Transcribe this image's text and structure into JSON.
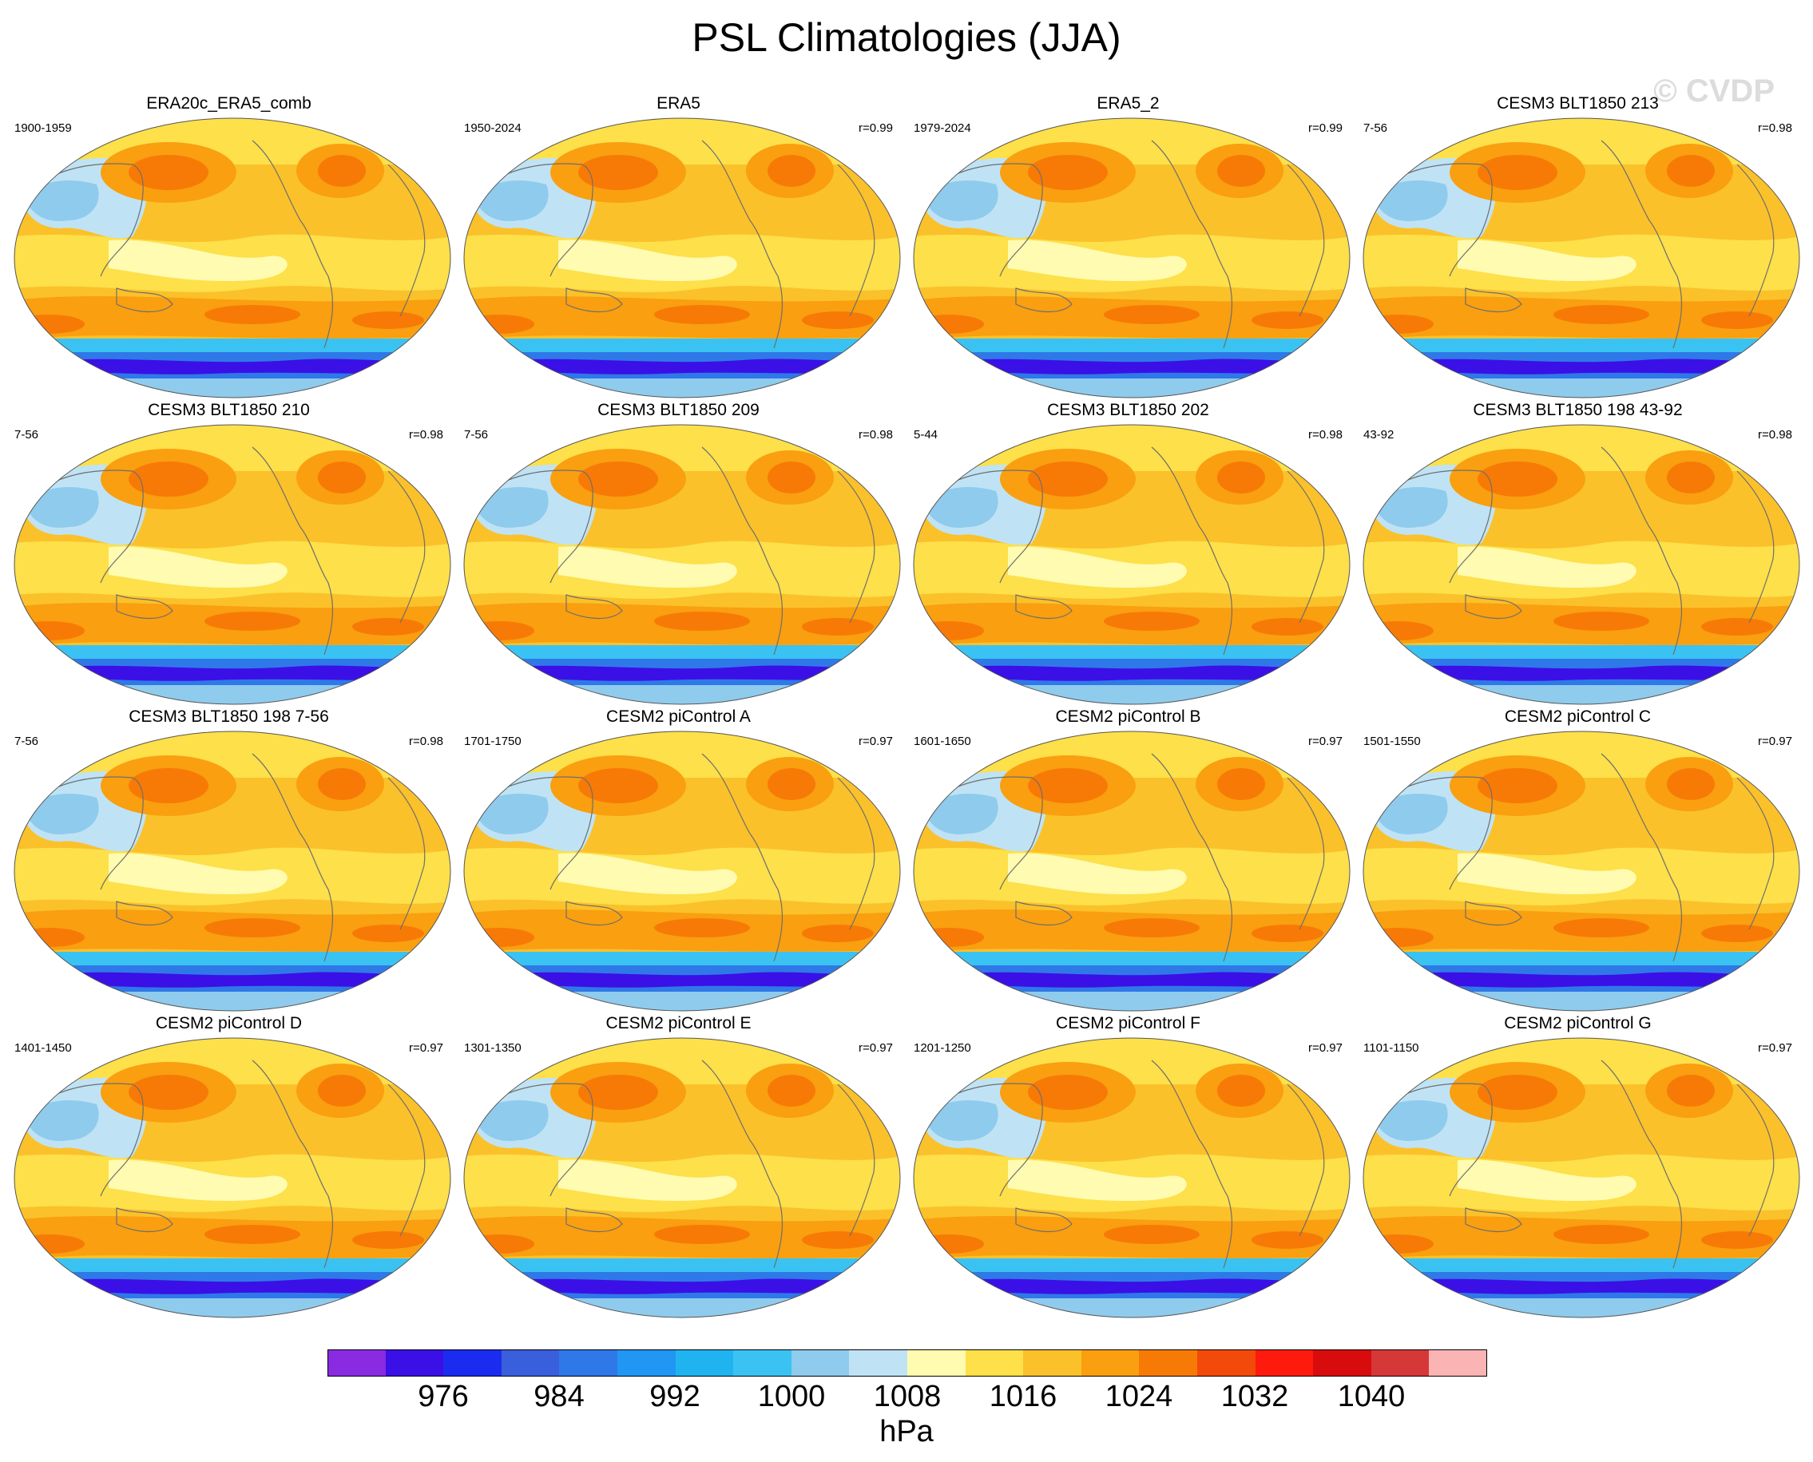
{
  "figure": {
    "title": "PSL Climatologies (JJA)",
    "watermark": "© CVDP"
  },
  "panels": [
    {
      "title": "ERA20c_ERA5_comb",
      "years": "1900-1959",
      "corr": ""
    },
    {
      "title": "ERA5",
      "years": "1950-2024",
      "corr": "r=0.99"
    },
    {
      "title": "ERA5_2",
      "years": "1979-2024",
      "corr": "r=0.99"
    },
    {
      "title": "CESM3 BLT1850 213",
      "years": "7-56",
      "corr": "r=0.98"
    },
    {
      "title": "CESM3 BLT1850 210",
      "years": "7-56",
      "corr": "r=0.98"
    },
    {
      "title": "CESM3 BLT1850 209",
      "years": "7-56",
      "corr": "r=0.98"
    },
    {
      "title": "CESM3 BLT1850 202",
      "years": "5-44",
      "corr": "r=0.98"
    },
    {
      "title": "CESM3 BLT1850 198 43-92",
      "years": "43-92",
      "corr": "r=0.98"
    },
    {
      "title": "CESM3 BLT1850 198 7-56",
      "years": "7-56",
      "corr": "r=0.98"
    },
    {
      "title": "CESM2 piControl A",
      "years": "1701-1750",
      "corr": "r=0.97"
    },
    {
      "title": "CESM2 piControl B",
      "years": "1601-1650",
      "corr": "r=0.97"
    },
    {
      "title": "CESM2 piControl C",
      "years": "1501-1550",
      "corr": "r=0.97"
    },
    {
      "title": "CESM2 piControl D",
      "years": "1401-1450",
      "corr": "r=0.97"
    },
    {
      "title": "CESM2 piControl E",
      "years": "1301-1350",
      "corr": "r=0.97"
    },
    {
      "title": "CESM2 piControl F",
      "years": "1201-1250",
      "corr": "r=0.97"
    },
    {
      "title": "CESM2 piControl G",
      "years": "1101-1150",
      "corr": "r=0.97"
    }
  ],
  "colorbar": {
    "units": "hPa",
    "labels": [
      "976",
      "984",
      "992",
      "1000",
      "1008",
      "1016",
      "1024",
      "1032",
      "1040"
    ],
    "colors": [
      "#8a2be2",
      "#3a10e6",
      "#1b2cf0",
      "#3a5fdc",
      "#2f78e8",
      "#2196f3",
      "#1fb4f0",
      "#3ac3f2",
      "#8fcbed",
      "#bfe3f5",
      "#fffbb0",
      "#fde04a",
      "#fbc12a",
      "#f99f10",
      "#f77a06",
      "#f24a0a",
      "#fe1a0d",
      "#d80c0c",
      "#d63838",
      "#fbb4b4"
    ]
  },
  "map_colors": {
    "polar_low_dark": "#3a10e6",
    "polar_low": "#2f78e8",
    "polar_low_light": "#3ac3f2",
    "land_low": "#8fcbed",
    "land_low_light": "#bfe3f5",
    "ocean_mid": "#fffbb0",
    "high_1": "#fde04a",
    "high_2": "#fbc12a",
    "high_3": "#f99f10",
    "high_4": "#f77a06",
    "high_5": "#f24a0a",
    "coast": "#6e6e6e"
  }
}
